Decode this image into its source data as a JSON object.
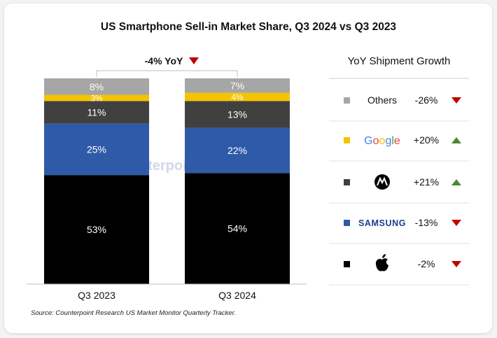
{
  "header": {
    "title": "US Smartphone Sell-in Market Share, Q3 2024 vs Q3 2023",
    "yoy_total_label": "-4% YoY"
  },
  "legend": {
    "title": "YoY Shipment Growth",
    "rows": [
      {
        "brand": "Others",
        "brand_text": "Others",
        "growth": "-26%",
        "direction": "down",
        "swatch": "#a6a6a6"
      },
      {
        "brand": "Google",
        "brand_text": "Google",
        "growth": "+20%",
        "direction": "up",
        "swatch": "#f5c300"
      },
      {
        "brand": "Motorola",
        "brand_text": "",
        "growth": "+21%",
        "direction": "up",
        "swatch": "#404040"
      },
      {
        "brand": "Samsung",
        "brand_text": "SAMSUNG",
        "growth": "-13%",
        "direction": "down",
        "swatch": "#2e5aa8"
      },
      {
        "brand": "Apple",
        "brand_text": "",
        "growth": "-2%",
        "direction": "down",
        "swatch": "#000000"
      }
    ]
  },
  "chart_data": {
    "type": "bar",
    "stacked": true,
    "categories": [
      "Q3 2023",
      "Q3 2024"
    ],
    "series": [
      {
        "name": "Apple",
        "values": [
          53,
          54
        ],
        "labels": [
          "53%",
          "54%"
        ]
      },
      {
        "name": "Samsung",
        "values": [
          25,
          22
        ],
        "labels": [
          "25%",
          "22%"
        ]
      },
      {
        "name": "Motorola",
        "values": [
          11,
          13
        ],
        "labels": [
          "11%",
          "13%"
        ]
      },
      {
        "name": "Google",
        "values": [
          3,
          4
        ],
        "labels": [
          "3%",
          "4%"
        ]
      },
      {
        "name": "Others",
        "values": [
          8,
          7
        ],
        "labels": [
          "8%",
          "7%"
        ]
      }
    ],
    "colors": {
      "Apple": "#000000",
      "Samsung": "#2e5aa8",
      "Motorola": "#404040",
      "Google": "#f5c300",
      "Others": "#a6a6a6"
    },
    "label_colors": {
      "Apple": "#ffffff",
      "Samsung": "#ffffff",
      "Motorola": "#ffffff",
      "Google": "#ffffff",
      "Others": "#ffffff"
    },
    "ylim": [
      0,
      100
    ]
  },
  "colors": {
    "down_arrow": "#c00000",
    "up_arrow": "#4a8a2a"
  },
  "watermark": "Counterpoint",
  "source": "Source: Counterpoint Research US Market Monitor Quarterly Tracker."
}
